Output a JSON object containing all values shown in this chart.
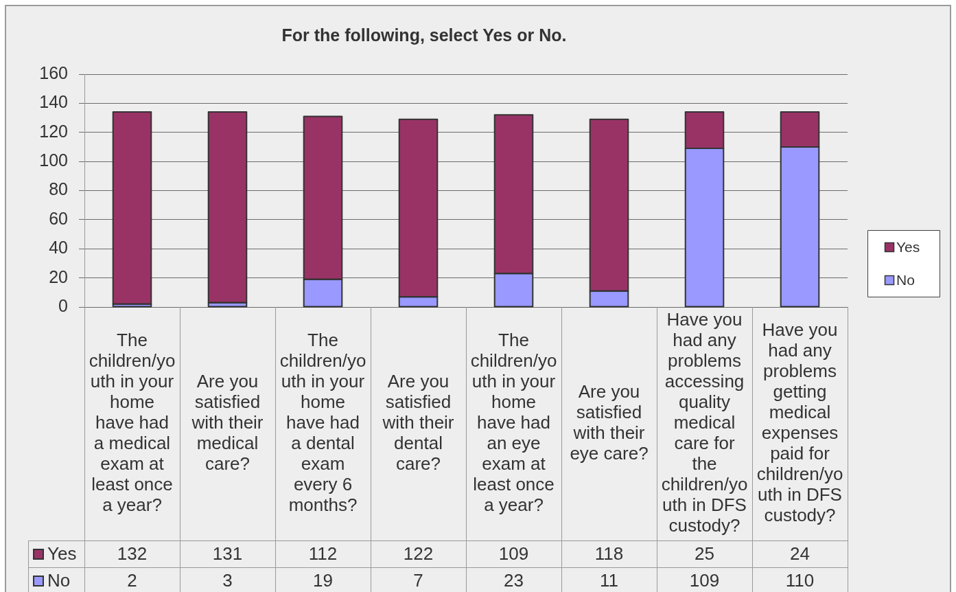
{
  "chart_data": {
    "type": "bar",
    "title": "For the following, select Yes or No.",
    "categories": [
      "The children/youth in your home have had a medical exam at least once a year?",
      "Are you satisfied with their medical care?",
      "The children/youth in your home have had a dental exam every 6 months?",
      "Are you satisfied with their dental care?",
      "The children/youth in your home have had an eye exam at least once a year?",
      "Are you satisfied with their eye care?",
      "Have you had any problems accessing quality medical care for the children/youth in DFS custody?",
      "Have you had any problems getting medical expenses paid for children/youth in DFS custody?"
    ],
    "series": [
      {
        "name": "No",
        "color": "#9999ff",
        "values": [
          2,
          3,
          19,
          7,
          23,
          11,
          109,
          110
        ]
      },
      {
        "name": "Yes",
        "color": "#993366",
        "values": [
          132,
          131,
          112,
          122,
          109,
          118,
          25,
          24
        ]
      }
    ],
    "stacked": true,
    "ylim": [
      0,
      160
    ],
    "yticks": [
      0,
      20,
      40,
      60,
      80,
      100,
      120,
      140,
      160
    ],
    "grid": "y",
    "legend": "right",
    "data_labels": true
  }
}
